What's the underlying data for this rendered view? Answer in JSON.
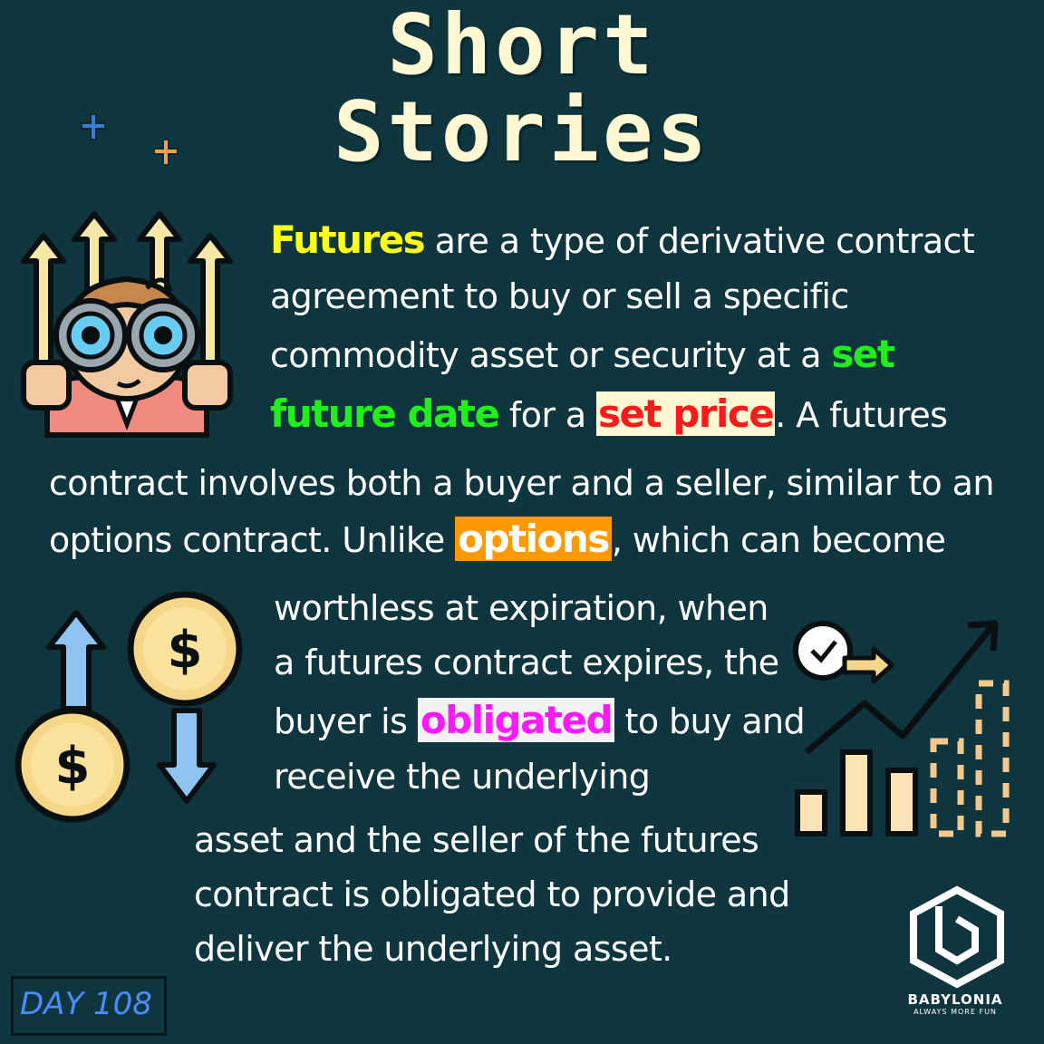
{
  "title": {
    "line1": "Short",
    "line2": "Stories"
  },
  "paragraph": {
    "l1_hl": "Futures",
    "l1_rest": " are a type of derivative contract",
    "l2": "agreement to buy or sell a specific",
    "l3_pre": "commodity asset or security at a ",
    "l3_hl": "set",
    "l4_hl1": "future date",
    "l4_mid": " for a ",
    "l4_hl2": "set price",
    "l4_post": ". A futures",
    "l5": "contract involves both a buyer and a seller, similar to an",
    "l6_pre": "options contract. Unlike ",
    "l6_hl": "options",
    "l6_post": ", which can become",
    "l7": "worthless at expiration, when",
    "l8": "a futures contract expires, the",
    "l9_pre": "buyer is ",
    "l9_hl": "obligated",
    "l9_post": " to buy and",
    "l10": "receive the underlying",
    "l11": "asset and the seller of the futures",
    "l12": "contract is obligated to provide and",
    "l13": "deliver the underlying asset."
  },
  "badge": {
    "day": "DAY 108"
  },
  "brand": {
    "name": "BABYLONIA",
    "tagline": "ALWAYS MORE FUN"
  },
  "icons": {
    "sparkles": "sparkle-icon",
    "investor": "binoculars-investor-icon",
    "currency": "dollar-up-down-icon",
    "growth": "growth-chart-icon",
    "logo": "babylonia-logo-icon"
  },
  "colors": {
    "background": "#0f353e",
    "title": "#fff8d2",
    "yellow": "#ffff1a",
    "green": "#22ee1c",
    "red": "#ff1a1a",
    "orange": "#ff9900",
    "magenta": "#ff1aff"
  }
}
